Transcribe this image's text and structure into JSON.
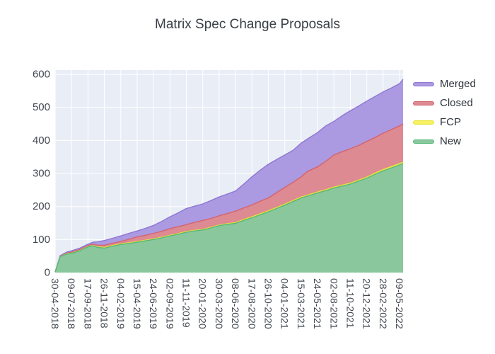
{
  "chart_data": {
    "type": "area",
    "stacked": true,
    "title": "Matrix Spec Change Proposals",
    "xlabel": "",
    "ylabel": "",
    "ylim": [
      0,
      613
    ],
    "grid": true,
    "legend_position": "top-right-outside",
    "legend_order": [
      "Merged",
      "Closed",
      "FCP",
      "New"
    ],
    "y_ticks": [
      0,
      100,
      200,
      300,
      400,
      500,
      600
    ],
    "x_tick_labels": [
      "30-04-2018",
      "09-07-2018",
      "17-09-2018",
      "26-11-2018",
      "04-02-2019",
      "15-04-2019",
      "24-06-2019",
      "02-09-2019",
      "11-11-2019",
      "20-01-2020",
      "30-03-2020",
      "08-06-2020",
      "17-08-2020",
      "26-10-2020",
      "04-01-2021",
      "15-03-2021",
      "24-05-2021",
      "02-08-2021",
      "11-10-2021",
      "20-12-2021",
      "28-02-2022",
      "09-05-2022"
    ],
    "x_dates": [
      "30-04-2018",
      "21-05-2018",
      "18-06-2018",
      "09-07-2018",
      "13-08-2018",
      "17-09-2018",
      "08-10-2018",
      "29-10-2018",
      "26-11-2018",
      "31-12-2018",
      "04-02-2019",
      "11-03-2019",
      "15-04-2019",
      "20-05-2019",
      "24-06-2019",
      "29-07-2019",
      "02-09-2019",
      "07-10-2019",
      "11-11-2019",
      "16-12-2019",
      "20-01-2020",
      "24-02-2020",
      "30-03-2020",
      "04-05-2020",
      "08-06-2020",
      "13-07-2020",
      "17-08-2020",
      "21-09-2020",
      "26-10-2020",
      "30-11-2020",
      "04-01-2021",
      "08-02-2021",
      "15-03-2021",
      "12-04-2021",
      "24-05-2021",
      "28-06-2021",
      "02-08-2021",
      "06-09-2021",
      "11-10-2021",
      "15-11-2021",
      "20-12-2021",
      "24-01-2022",
      "28-02-2022",
      "04-04-2022",
      "09-05-2022",
      "24-05-2022"
    ],
    "series": [
      {
        "name": "New",
        "fill": "#8bc79d",
        "line": "#56b87b",
        "values": [
          2,
          48,
          56,
          58,
          66,
          78,
          81,
          76,
          74,
          80,
          85,
          88,
          92,
          96,
          100,
          105,
          111,
          116,
          122,
          126,
          129,
          135,
          142,
          146,
          149,
          158,
          166,
          175,
          184,
          194,
          204,
          215,
          226,
          232,
          241,
          248,
          256,
          262,
          268,
          277,
          286,
          297,
          308,
          317,
          326,
          330
        ]
      },
      {
        "name": "FCP",
        "fill": "#f5f160",
        "line": "#e8e136",
        "values": [
          0,
          0,
          1,
          1,
          1,
          1,
          1,
          2,
          2,
          2,
          2,
          2,
          2,
          2,
          2,
          2,
          2,
          2,
          2,
          2,
          2,
          2,
          2,
          2,
          2,
          3,
          3,
          3,
          3,
          3,
          3,
          3,
          3,
          3,
          3,
          3,
          3,
          3,
          3,
          3,
          3,
          4,
          4,
          4,
          4,
          4
        ]
      },
      {
        "name": "Closed",
        "fill": "#dd8a92",
        "line": "#d4636e",
        "values": [
          0,
          1,
          2,
          3,
          3,
          3,
          4,
          5,
          7,
          7,
          7,
          11,
          14,
          15,
          17,
          18,
          20,
          21,
          21,
          24,
          27,
          27,
          28,
          31,
          35,
          35,
          36,
          38,
          39,
          45,
          51,
          55,
          61,
          72,
          76,
          86,
          97,
          101,
          104,
          105,
          108,
          108,
          110,
          112,
          114,
          116
        ]
      },
      {
        "name": "Merged",
        "fill": "#ab9ae2",
        "line": "#8e76d2",
        "values": [
          0,
          2,
          3,
          4,
          4,
          4,
          6,
          10,
          14,
          15,
          17,
          18,
          18,
          21,
          24,
          30,
          36,
          42,
          49,
          49,
          50,
          54,
          57,
          59,
          61,
          72,
          85,
          94,
          102,
          100,
          98,
          97,
          102,
          98,
          104,
          107,
          102,
          109,
          115,
          119,
          122,
          124,
          125,
          126,
          128,
          135
        ]
      }
    ]
  },
  "colors": {
    "plot_bg": "#e9edf6",
    "grid": "#ffffff",
    "tick_label": "#42474f",
    "title": "#3a3f47"
  }
}
